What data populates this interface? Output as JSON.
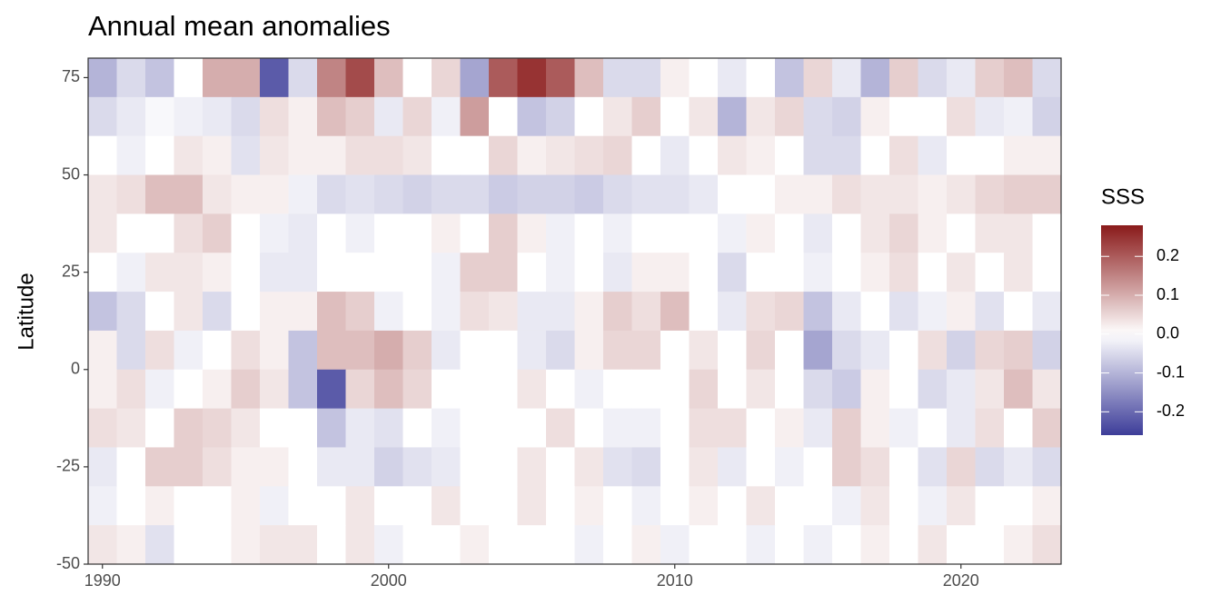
{
  "chart_data": {
    "type": "heatmap",
    "title": "Annual mean anomalies",
    "y_label": "Latitude",
    "legend_title": "SSS",
    "x": [
      1990,
      1991,
      1992,
      1993,
      1994,
      1995,
      1996,
      1997,
      1998,
      1999,
      2000,
      2001,
      2002,
      2003,
      2004,
      2005,
      2006,
      2007,
      2008,
      2009,
      2010,
      2011,
      2012,
      2013,
      2014,
      2015,
      2016,
      2017,
      2018,
      2019,
      2020,
      2021,
      2022,
      2023
    ],
    "y": [
      75,
      65,
      55,
      45,
      35,
      25,
      15,
      5,
      -5,
      -15,
      -25,
      -35,
      -45
    ],
    "values": [
      [
        -0.1,
        -0.05,
        -0.08,
        0.0,
        0.1,
        0.1,
        -0.22,
        -0.05,
        0.15,
        0.22,
        0.08,
        0.0,
        0.05,
        -0.12,
        0.2,
        0.25,
        0.2,
        0.08,
        -0.05,
        -0.05,
        0.02,
        0.0,
        -0.03,
        0.0,
        -0.08,
        0.05,
        -0.03,
        -0.1,
        0.06,
        -0.05,
        -0.03,
        0.06,
        0.08,
        -0.05
      ],
      [
        -0.05,
        -0.03,
        -0.01,
        -0.02,
        -0.03,
        -0.05,
        0.04,
        0.02,
        0.08,
        0.06,
        -0.03,
        0.05,
        -0.02,
        0.12,
        0.0,
        -0.08,
        -0.06,
        0.0,
        0.03,
        0.06,
        0.0,
        0.03,
        -0.1,
        0.03,
        0.05,
        -0.05,
        -0.06,
        0.02,
        0.0,
        0.0,
        0.04,
        -0.03,
        -0.02,
        -0.06
      ],
      [
        0.0,
        -0.02,
        0.0,
        0.03,
        0.02,
        -0.04,
        0.03,
        0.02,
        0.02,
        0.04,
        0.04,
        0.03,
        0.0,
        0.0,
        0.05,
        0.02,
        0.03,
        0.04,
        0.05,
        0.0,
        -0.03,
        0.0,
        0.03,
        0.02,
        0.0,
        -0.05,
        -0.05,
        0.0,
        0.04,
        -0.03,
        0.0,
        0.0,
        0.02,
        0.02
      ],
      [
        0.03,
        0.04,
        0.08,
        0.08,
        0.03,
        0.02,
        0.02,
        -0.02,
        -0.05,
        -0.04,
        -0.05,
        -0.06,
        -0.05,
        -0.05,
        -0.07,
        -0.06,
        -0.06,
        -0.07,
        -0.05,
        -0.04,
        -0.04,
        -0.03,
        0.0,
        0.0,
        0.02,
        0.02,
        0.04,
        0.03,
        0.03,
        0.02,
        0.03,
        0.05,
        0.06,
        0.06
      ],
      [
        0.03,
        0.0,
        0.0,
        0.04,
        0.06,
        0.0,
        -0.02,
        -0.03,
        0.0,
        -0.02,
        0.0,
        0.0,
        0.02,
        0.0,
        0.06,
        0.02,
        -0.02,
        0.0,
        -0.02,
        0.0,
        0.0,
        0.0,
        -0.02,
        0.02,
        0.0,
        -0.03,
        0.0,
        0.03,
        0.05,
        0.02,
        0.0,
        0.03,
        0.03,
        0.0
      ],
      [
        0.0,
        -0.02,
        0.03,
        0.03,
        0.02,
        0.0,
        -0.03,
        -0.03,
        0.0,
        0.0,
        0.0,
        0.0,
        -0.02,
        0.06,
        0.06,
        0.0,
        -0.02,
        0.0,
        -0.03,
        0.02,
        0.02,
        0.0,
        -0.05,
        0.0,
        0.0,
        -0.02,
        0.0,
        0.02,
        0.04,
        0.0,
        0.03,
        0.0,
        0.03,
        0.0
      ],
      [
        -0.08,
        -0.05,
        0.0,
        0.03,
        -0.05,
        0.0,
        0.02,
        0.02,
        0.08,
        0.06,
        -0.02,
        0.0,
        -0.02,
        0.04,
        0.03,
        -0.03,
        -0.03,
        0.02,
        0.06,
        0.04,
        0.08,
        0.0,
        -0.03,
        0.04,
        0.05,
        -0.08,
        -0.03,
        0.0,
        -0.04,
        -0.02,
        0.02,
        -0.04,
        0.0,
        -0.03
      ],
      [
        0.02,
        -0.05,
        0.04,
        -0.02,
        0.0,
        0.04,
        0.02,
        -0.08,
        0.08,
        0.08,
        0.1,
        0.06,
        -0.03,
        0.0,
        0.0,
        -0.03,
        -0.05,
        0.02,
        0.05,
        0.05,
        0.0,
        0.03,
        0.0,
        0.05,
        0.0,
        -0.12,
        -0.05,
        -0.03,
        0.0,
        0.04,
        -0.06,
        0.05,
        0.06,
        -0.06
      ],
      [
        0.02,
        0.04,
        -0.02,
        0.0,
        0.02,
        0.06,
        0.03,
        -0.08,
        -0.22,
        0.05,
        0.08,
        0.05,
        0.0,
        0.0,
        0.0,
        0.03,
        0.0,
        -0.02,
        0.0,
        0.0,
        0.0,
        0.05,
        0.0,
        0.03,
        0.0,
        -0.05,
        -0.07,
        0.02,
        0.0,
        -0.05,
        -0.03,
        0.03,
        0.08,
        0.03
      ],
      [
        0.04,
        0.03,
        0.0,
        0.06,
        0.05,
        0.03,
        0.0,
        0.0,
        -0.08,
        -0.03,
        -0.04,
        0.0,
        -0.02,
        0.0,
        0.0,
        0.0,
        0.04,
        0.0,
        -0.02,
        -0.02,
        0.0,
        0.04,
        0.04,
        0.0,
        0.02,
        -0.03,
        0.06,
        0.02,
        -0.02,
        0.0,
        -0.03,
        0.04,
        0.0,
        0.06
      ],
      [
        -0.03,
        0.0,
        0.06,
        0.06,
        0.04,
        0.02,
        0.02,
        0.0,
        -0.03,
        -0.03,
        -0.06,
        -0.04,
        -0.03,
        0.0,
        0.0,
        0.03,
        0.0,
        0.03,
        -0.04,
        -0.05,
        0.0,
        0.03,
        -0.03,
        0.0,
        -0.02,
        0.0,
        0.06,
        0.04,
        0.0,
        -0.04,
        0.05,
        -0.05,
        -0.03,
        -0.05
      ],
      [
        -0.02,
        0.0,
        0.02,
        0.0,
        0.0,
        0.02,
        -0.02,
        0.0,
        0.0,
        0.03,
        0.0,
        0.0,
        0.03,
        0.0,
        0.0,
        0.03,
        0.0,
        0.02,
        0.0,
        -0.02,
        0.0,
        0.02,
        0.0,
        0.03,
        0.0,
        0.0,
        -0.02,
        0.03,
        0.0,
        -0.02,
        0.03,
        0.0,
        0.0,
        0.02
      ],
      [
        0.03,
        0.02,
        -0.04,
        0.0,
        0.0,
        0.02,
        0.03,
        0.03,
        0.0,
        0.03,
        -0.02,
        0.0,
        0.0,
        0.02,
        0.0,
        0.0,
        0.0,
        -0.02,
        0.0,
        0.02,
        -0.02,
        0.0,
        0.0,
        -0.02,
        0.0,
        -0.02,
        0.0,
        0.02,
        0.0,
        0.03,
        0.0,
        0.0,
        0.02,
        0.04
      ]
    ],
    "xlim": [
      1989.5,
      2023.5
    ],
    "ylim": [
      -50,
      80
    ],
    "xticks": [
      1990,
      2000,
      2010,
      2020
    ],
    "yticks": [
      -50,
      -25,
      0,
      25,
      50,
      75
    ],
    "clim": [
      -0.26,
      0.28
    ],
    "cticks": [
      -0.2,
      -0.1,
      {
        "value": 0,
        "label": "0.0"
      },
      0.1,
      0.2
    ],
    "colors": {
      "low": "#3d3d99",
      "mid": "#ffffff",
      "high": "#8a1a1a"
    }
  }
}
